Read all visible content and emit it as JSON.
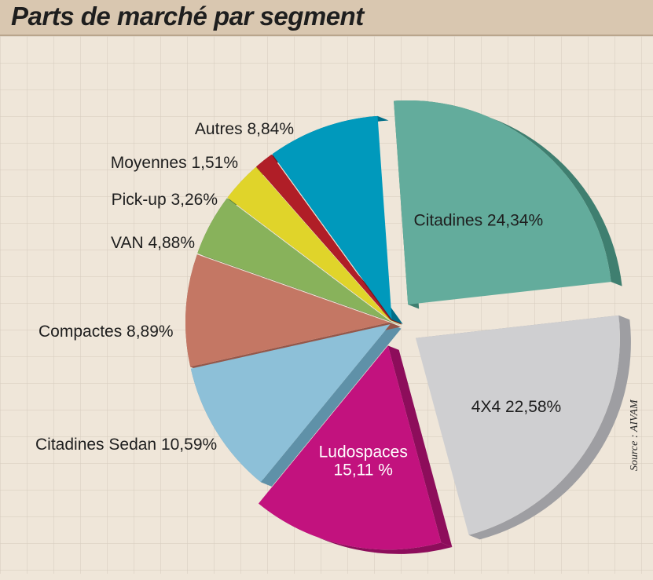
{
  "title": "Parts de marché par segment",
  "source": "Source : AIVAM",
  "chart_data": {
    "type": "pie",
    "title": "Parts de marché par segment",
    "unit": "%",
    "slices": [
      {
        "name": "Citadines",
        "label": "Citadines 24,34%",
        "value": 24.34,
        "color": "#63ac9c",
        "side": "#3f7f70",
        "label_inside": true
      },
      {
        "name": "4X4",
        "label": "4X4 22,58%",
        "value": 22.58,
        "color": "#cfcfd1",
        "side": "#9e9ea2",
        "label_inside": true
      },
      {
        "name": "Ludospaces",
        "label_lines": [
          "Ludospaces",
          "15,11 %"
        ],
        "value": 15.11,
        "color": "#c2127e",
        "side": "#8d0d5b",
        "label_inside": true,
        "label_color": "#ffffff"
      },
      {
        "name": "Citadines Sedan",
        "label": "Citadines Sedan 10,59%",
        "value": 10.59,
        "color": "#8dc0d8",
        "side": "#5f91a8",
        "label_inside": false
      },
      {
        "name": "Compactes",
        "label": "Compactes 8,89%",
        "value": 8.89,
        "color": "#c47764",
        "side": "#94574a",
        "label_inside": false
      },
      {
        "name": "VAN",
        "label": "VAN 4,88%",
        "value": 4.88,
        "color": "#88b25b",
        "side": "#628540",
        "label_inside": false
      },
      {
        "name": "Pick-up",
        "label": "Pick-up 3,26%",
        "value": 3.26,
        "color": "#e0d42a",
        "side": "#a59b1c",
        "label_inside": false
      },
      {
        "name": "Moyennes",
        "label": "Moyennes 1,51%",
        "value": 1.51,
        "color": "#b01e27",
        "side": "#7d141b",
        "label_inside": false
      },
      {
        "name": "Autres",
        "label": "Autres 8,84%",
        "value": 8.84,
        "color": "#0099bc",
        "side": "#006e88",
        "label_inside": false
      }
    ],
    "exploded": [
      "Citadines",
      "4X4",
      "Ludospaces"
    ],
    "legend": "none"
  }
}
